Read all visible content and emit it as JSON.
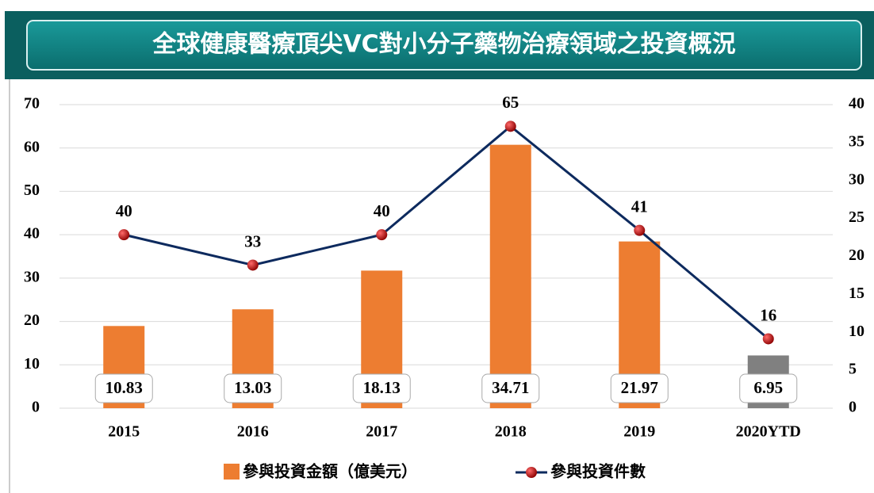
{
  "chart_data": {
    "type": "bar",
    "title": "全球健康醫療頂尖VC對小分子藥物治療領域之投資概況",
    "categories": [
      "2015",
      "2016",
      "2017",
      "2018",
      "2019",
      "2020YTD"
    ],
    "series": [
      {
        "name": "參與投資金額（億美元）",
        "type": "bar",
        "axis": "y2",
        "color": "#ed7d31",
        "colors": [
          "#ed7d31",
          "#ed7d31",
          "#ed7d31",
          "#ed7d31",
          "#ed7d31",
          "#808080"
        ],
        "values": [
          10.83,
          13.03,
          18.13,
          34.71,
          21.97,
          6.95
        ]
      },
      {
        "name": "參與投資件數",
        "type": "line",
        "axis": "y",
        "color": "#0d2a5e",
        "marker_color": "#c00000",
        "values": [
          40,
          33,
          40,
          65,
          41,
          16
        ]
      }
    ],
    "ylim": [
      0,
      70
    ],
    "yticks": [
      0,
      10,
      20,
      30,
      40,
      50,
      60,
      70
    ],
    "y2lim": [
      0,
      40
    ],
    "y2ticks": [
      0,
      5,
      10,
      15,
      20,
      25,
      30,
      35,
      40
    ],
    "grid": true,
    "legend": "bottom"
  }
}
